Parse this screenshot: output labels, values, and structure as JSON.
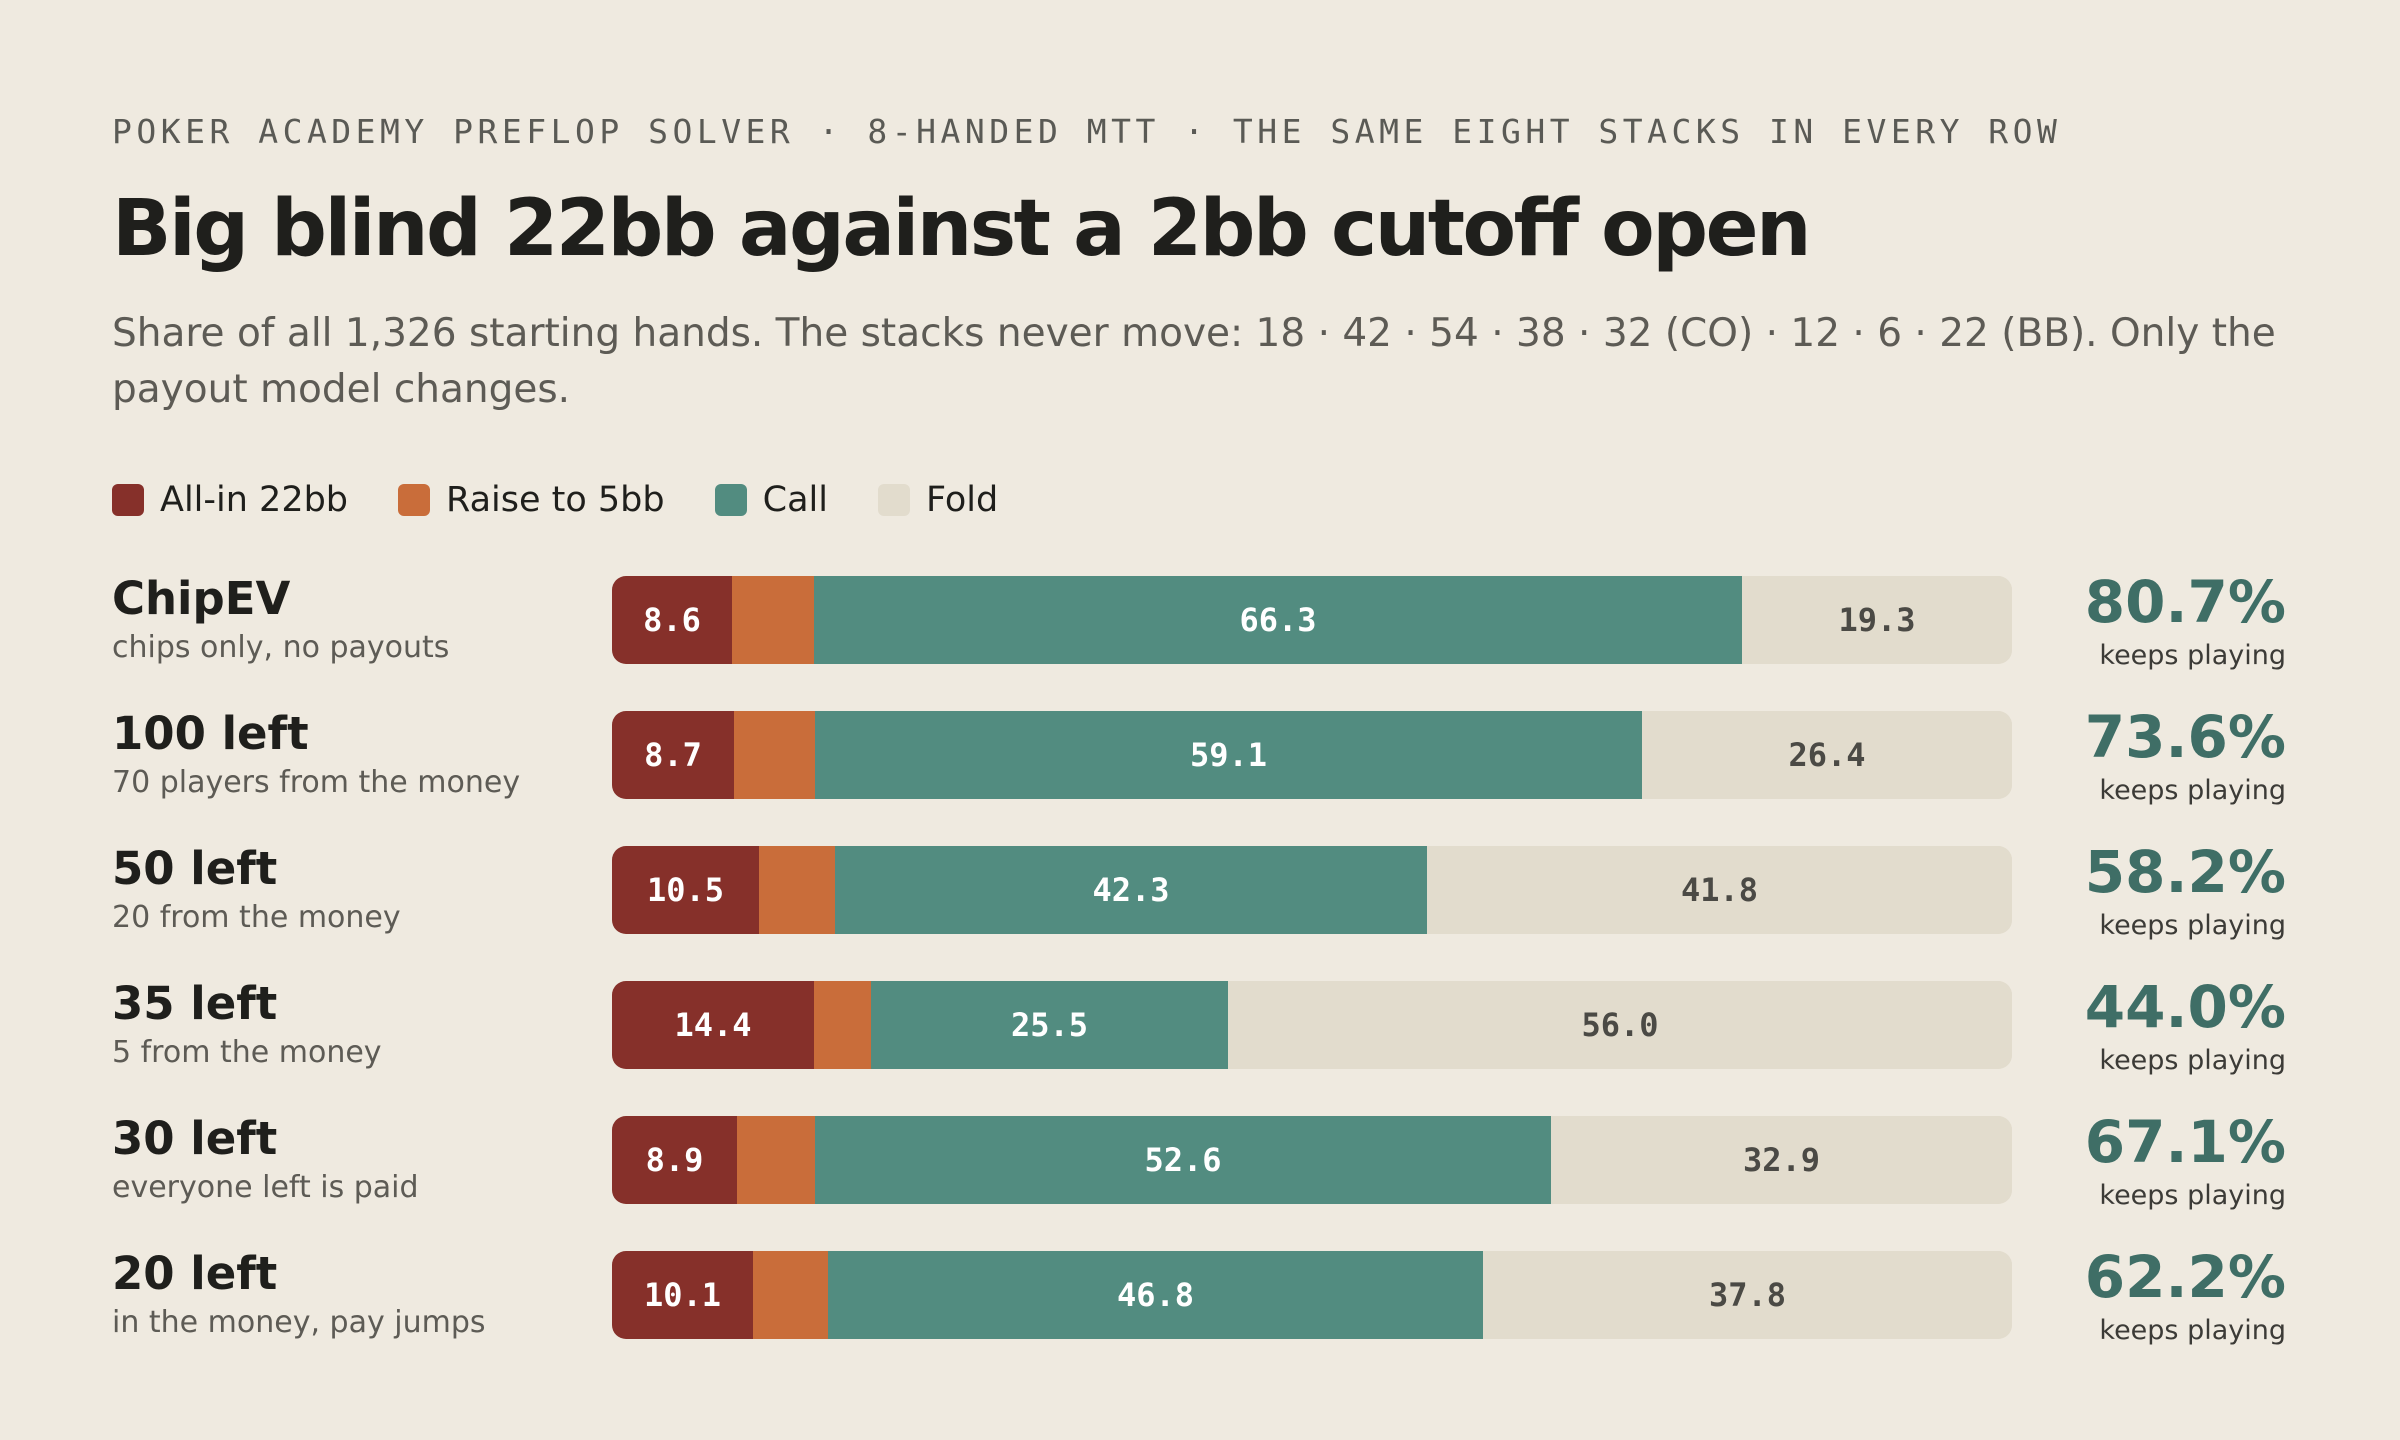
{
  "header": {
    "kicker": "POKER ACADEMY PREFLOP SOLVER · 8-HANDED MTT · THE SAME EIGHT STACKS IN EVERY ROW",
    "title": "Big blind 22bb against a 2bb cutoff open",
    "subtitle": "Share of all 1,326 starting hands. The stacks never move: 18 · 42 · 54 · 38 · 32 (CO) · 12 · 6 · 22 (BB). Only the payout model changes."
  },
  "colors": {
    "allin": "#86302a",
    "raise": "#c96d3a",
    "call": "#528c80",
    "fold": "#e2dccd",
    "accent": "#3f6e66",
    "background": "#efeae0"
  },
  "chart_data": {
    "type": "bar",
    "orientation": "horizontal",
    "stacked": true,
    "xlim": [
      0,
      100
    ],
    "legend_position": "top-left",
    "legend": [
      {
        "key": "allin",
        "label": "All-in 22bb"
      },
      {
        "key": "raise",
        "label": "Raise to 5bb"
      },
      {
        "key": "call",
        "label": "Call"
      },
      {
        "key": "fold",
        "label": "Fold"
      }
    ],
    "rows": [
      {
        "name": "ChipEV",
        "sub": "chips only, no payouts",
        "allin": 8.6,
        "raise": 5.8,
        "call": 66.3,
        "fold": 19.3,
        "allin_label": "8.6",
        "call_label": "66.3",
        "fold_label": "19.3",
        "keeps": "80.7%",
        "keeps_label": "keeps playing"
      },
      {
        "name": "100 left",
        "sub": "70 players from the money",
        "allin": 8.7,
        "raise": 5.8,
        "call": 59.1,
        "fold": 26.4,
        "allin_label": "8.7",
        "call_label": "59.1",
        "fold_label": "26.4",
        "keeps": "73.6%",
        "keeps_label": "keeps playing"
      },
      {
        "name": "50 left",
        "sub": "20 from the money",
        "allin": 10.5,
        "raise": 5.4,
        "call": 42.3,
        "fold": 41.8,
        "allin_label": "10.5",
        "call_label": "42.3",
        "fold_label": "41.8",
        "keeps": "58.2%",
        "keeps_label": "keeps playing"
      },
      {
        "name": "35 left",
        "sub": "5 from the money",
        "allin": 14.4,
        "raise": 4.1,
        "call": 25.5,
        "fold": 56.0,
        "allin_label": "14.4",
        "call_label": "25.5",
        "fold_label": "56.0",
        "keeps": "44.0%",
        "keeps_label": "keeps playing"
      },
      {
        "name": "30 left",
        "sub": "everyone left is paid",
        "allin": 8.9,
        "raise": 5.6,
        "call": 52.6,
        "fold": 32.9,
        "allin_label": "8.9",
        "call_label": "52.6",
        "fold_label": "32.9",
        "keeps": "67.1%",
        "keeps_label": "keeps playing"
      },
      {
        "name": "20 left",
        "sub": "in the money, pay jumps",
        "allin": 10.1,
        "raise": 5.3,
        "call": 46.8,
        "fold": 37.8,
        "allin_label": "10.1",
        "call_label": "46.8",
        "fold_label": "37.8",
        "keeps": "62.2%",
        "keeps_label": "keeps playing"
      }
    ]
  }
}
